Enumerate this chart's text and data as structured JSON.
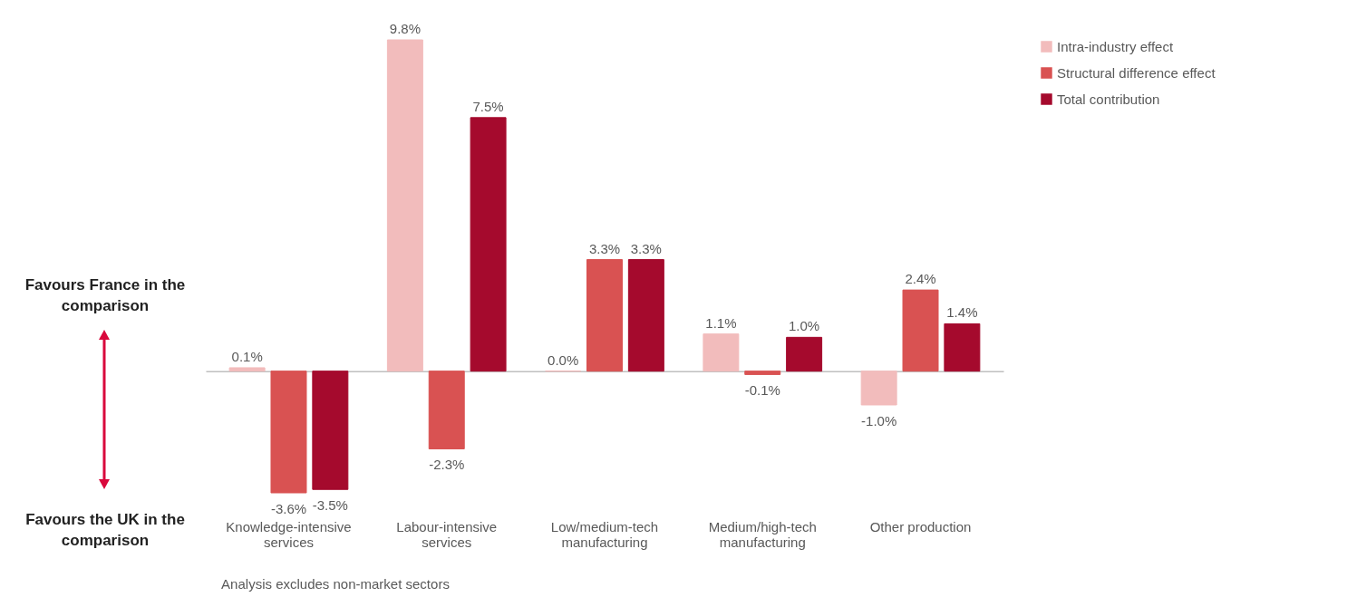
{
  "chart_data": {
    "type": "bar",
    "categories": [
      "Knowledge-intensive services",
      "Labour-intensive services",
      "Low/medium-tech manufacturing",
      "Medium/high-tech manufacturing",
      "Other production"
    ],
    "series": [
      {
        "name": "Intra-industry effect",
        "color": "#f2bcbc",
        "values": [
          0.1,
          9.8,
          0.0,
          1.1,
          -1.0
        ],
        "value_labels": [
          "0.1%",
          "9.8%",
          "0.0%",
          "1.1%",
          "-1.0%"
        ]
      },
      {
        "name": "Structural difference effect",
        "color": "#d95252",
        "values": [
          -3.6,
          -2.3,
          3.3,
          -0.1,
          2.4
        ],
        "value_labels": [
          "-3.6%",
          "-2.3%",
          "3.3%",
          "-0.1%",
          "2.4%"
        ]
      },
      {
        "name": "Total contribution",
        "color": "#a50a2d",
        "values": [
          -3.5,
          7.5,
          3.3,
          1.0,
          1.4
        ],
        "value_labels": [
          "-3.5%",
          "7.5%",
          "3.3%",
          "1.0%",
          "1.4%"
        ]
      }
    ],
    "legend": "right",
    "annotations": [
      "Favours France in the comparison",
      "Favours the UK in the comparison",
      "Analysis excludes non-market sectors"
    ]
  }
}
